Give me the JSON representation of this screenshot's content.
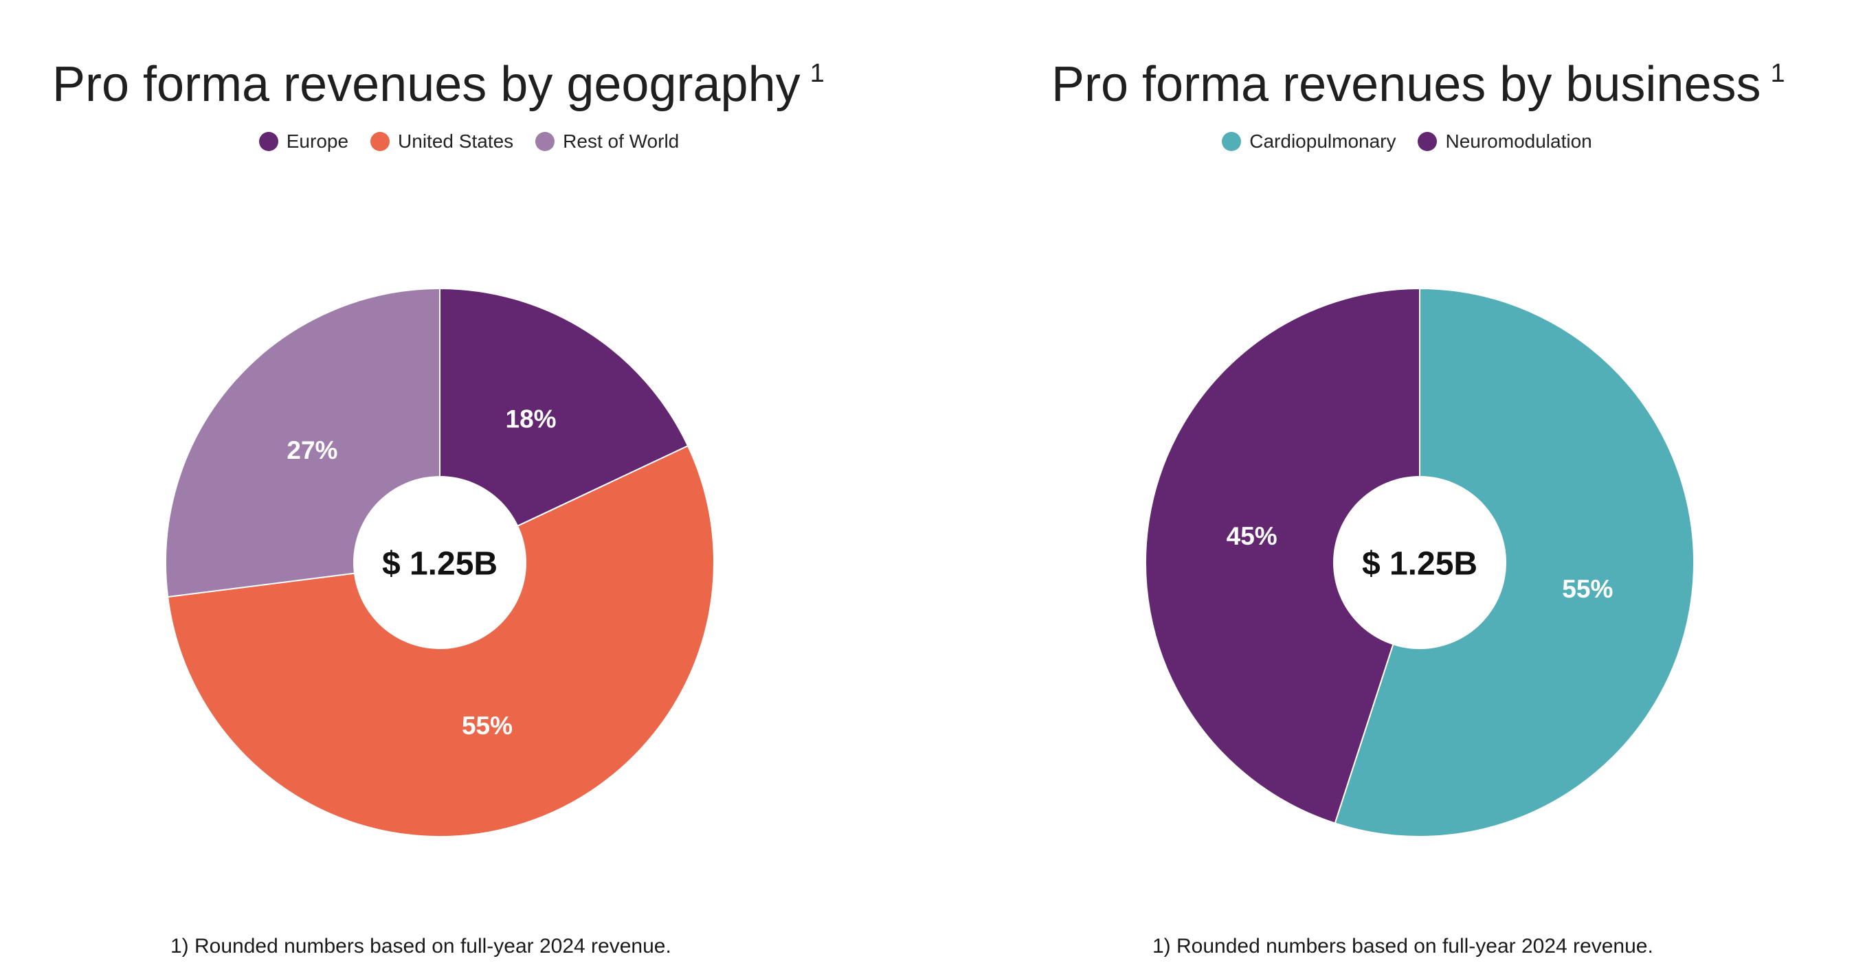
{
  "chart_data": [
    {
      "type": "pie",
      "title": "Pro forma revenues by geography",
      "title_superscript": "1",
      "center_label": "$ 1.25B",
      "slices": [
        {
          "name": "Europe",
          "value": 18,
          "label": "18%",
          "color": "#632670"
        },
        {
          "name": "United States",
          "value": 55,
          "label": "55%",
          "color": "#EC6649"
        },
        {
          "name": "Rest of World",
          "value": 27,
          "label": "27%",
          "color": "#9F7DAA"
        }
      ],
      "legend_placement": "top-center",
      "footnote": "1) Rounded numbers based on full-year 2024 revenue."
    },
    {
      "type": "pie",
      "title": "Pro forma revenues by business",
      "title_superscript": "1",
      "center_label": "$ 1.25B",
      "slices": [
        {
          "name": "Cardiopulmonary",
          "value": 55,
          "label": "55%",
          "color": "#52AFB7"
        },
        {
          "name": "Neuromodulation",
          "value": 45,
          "label": "45%",
          "color": "#632670"
        }
      ],
      "legend_placement": "top-center",
      "footnote": "1) Rounded numbers based on full-year 2024 revenue."
    }
  ]
}
